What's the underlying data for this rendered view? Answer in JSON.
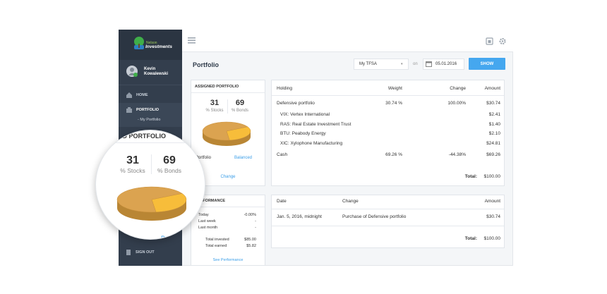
{
  "sidebar": {
    "brand_top": "Nelson",
    "brand": "Investments",
    "user_first": "Kevin",
    "user_last": "Kowalewski",
    "nav": [
      "HOME",
      "PORTFOLIO",
      "- My Portfolio",
      "SIGN OUT"
    ]
  },
  "header": {
    "title": "Portfolio",
    "account": "My TFSA",
    "on": "on",
    "date": "05.01.2016",
    "button": "SHOW"
  },
  "assigned": {
    "title": "ASSIGNED PORTFOLIO",
    "stocks": 31,
    "stocks_label": "% Stocks",
    "bonds": 69,
    "bonds_label": "% Bonds",
    "portfolio_label": "Portfolio",
    "portfolio_value": "Balanced",
    "change": "Change"
  },
  "performance": {
    "title": "PERFORMANCE",
    "rows": [
      [
        "Today",
        "-0.00%"
      ],
      [
        "Last week",
        "-"
      ],
      [
        "Last month",
        "-"
      ]
    ],
    "totals": [
      [
        "Total invested",
        "$85.00"
      ],
      [
        "Total earned",
        "$5.82"
      ]
    ],
    "link": "See Performance"
  },
  "holdings": {
    "columns": [
      "Holding",
      "Weight",
      "Change",
      "Amount"
    ],
    "rows": [
      {
        "name": "Defensive portfolio",
        "weight": "30.74 %",
        "change": "100.00%",
        "amount": "$30.74"
      },
      {
        "name": "VIX: Vertex International",
        "amount": "$2.41"
      },
      {
        "name": "RAS: Real Estate Investment Trust",
        "amount": "$1.40"
      },
      {
        "name": "BTU: Peabody Energy",
        "amount": "$2.10"
      },
      {
        "name": "XIC: Xylophone Manufacturing",
        "amount": "$24.81"
      },
      {
        "name": "Cash",
        "weight": "69.26 %",
        "change": "-44.38%",
        "amount": "$69.26"
      }
    ],
    "total_label": "Total:",
    "total": "$100.00"
  },
  "transactions": {
    "columns": [
      "Date",
      "Change",
      "Amount"
    ],
    "rows": [
      [
        "Jan. 5, 2016, midnight",
        "Purchase of Defensive portfolio",
        "$30.74"
      ]
    ],
    "total_label": "Total:",
    "total": "$100.00"
  }
}
